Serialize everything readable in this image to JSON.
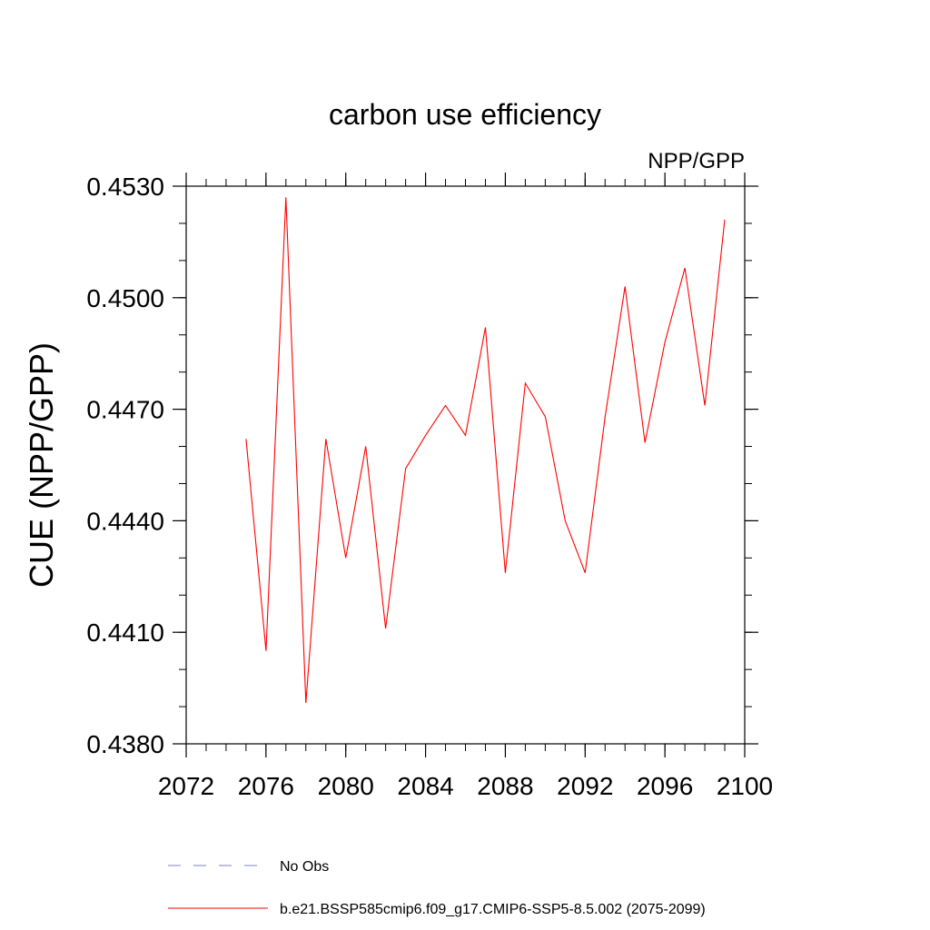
{
  "chart_data": {
    "type": "line",
    "title": "carbon use efficiency",
    "subtitle": "NPP/GPP",
    "xlabel": "",
    "ylabel": "CUE  (NPP/GPP)",
    "xlim": [
      2072,
      2100
    ],
    "ylim": [
      0.438,
      0.453
    ],
    "x_ticks": [
      2072,
      2076,
      2080,
      2084,
      2088,
      2092,
      2096,
      2100
    ],
    "x_tick_labels": [
      "2072",
      "2076",
      "2080",
      "2084",
      "2088",
      "2092",
      "2096",
      "2100"
    ],
    "y_ticks": [
      0.438,
      0.441,
      0.444,
      0.447,
      0.45,
      0.453
    ],
    "y_tick_labels": [
      "0.4380",
      "0.4410",
      "0.4440",
      "0.4470",
      "0.4500",
      "0.4530"
    ],
    "x_minor_step": 1,
    "y_minor_step": 0.001,
    "series": [
      {
        "name": "b.e21.BSSP585cmip6.f09_g17.CMIP6-SSP5-8.5.002 (2075-2099)",
        "color": "#ff0000",
        "x": [
          2075,
          2076,
          2077,
          2078,
          2079,
          2080,
          2081,
          2082,
          2083,
          2084,
          2085,
          2086,
          2087,
          2088,
          2089,
          2090,
          2091,
          2092,
          2093,
          2094,
          2095,
          2096,
          2097,
          2098,
          2099
        ],
        "values": [
          0.4462,
          0.4405,
          0.4527,
          0.4391,
          0.4462,
          0.443,
          0.446,
          0.4411,
          0.4454,
          0.4463,
          0.4471,
          0.4463,
          0.4492,
          0.4426,
          0.4477,
          0.4468,
          0.444,
          0.4426,
          0.4468,
          0.4503,
          0.4461,
          0.4488,
          0.4508,
          0.4471,
          0.4521
        ]
      }
    ],
    "legend": [
      {
        "label": "No Obs",
        "style": "dashed",
        "color": "#8080c0"
      },
      {
        "label": "b.e21.BSSP585cmip6.f09_g17.CMIP6-SSP5-8.5.002 (2075-2099)",
        "style": "solid",
        "color": "#ff0000"
      }
    ],
    "legend_position": "bottom"
  }
}
